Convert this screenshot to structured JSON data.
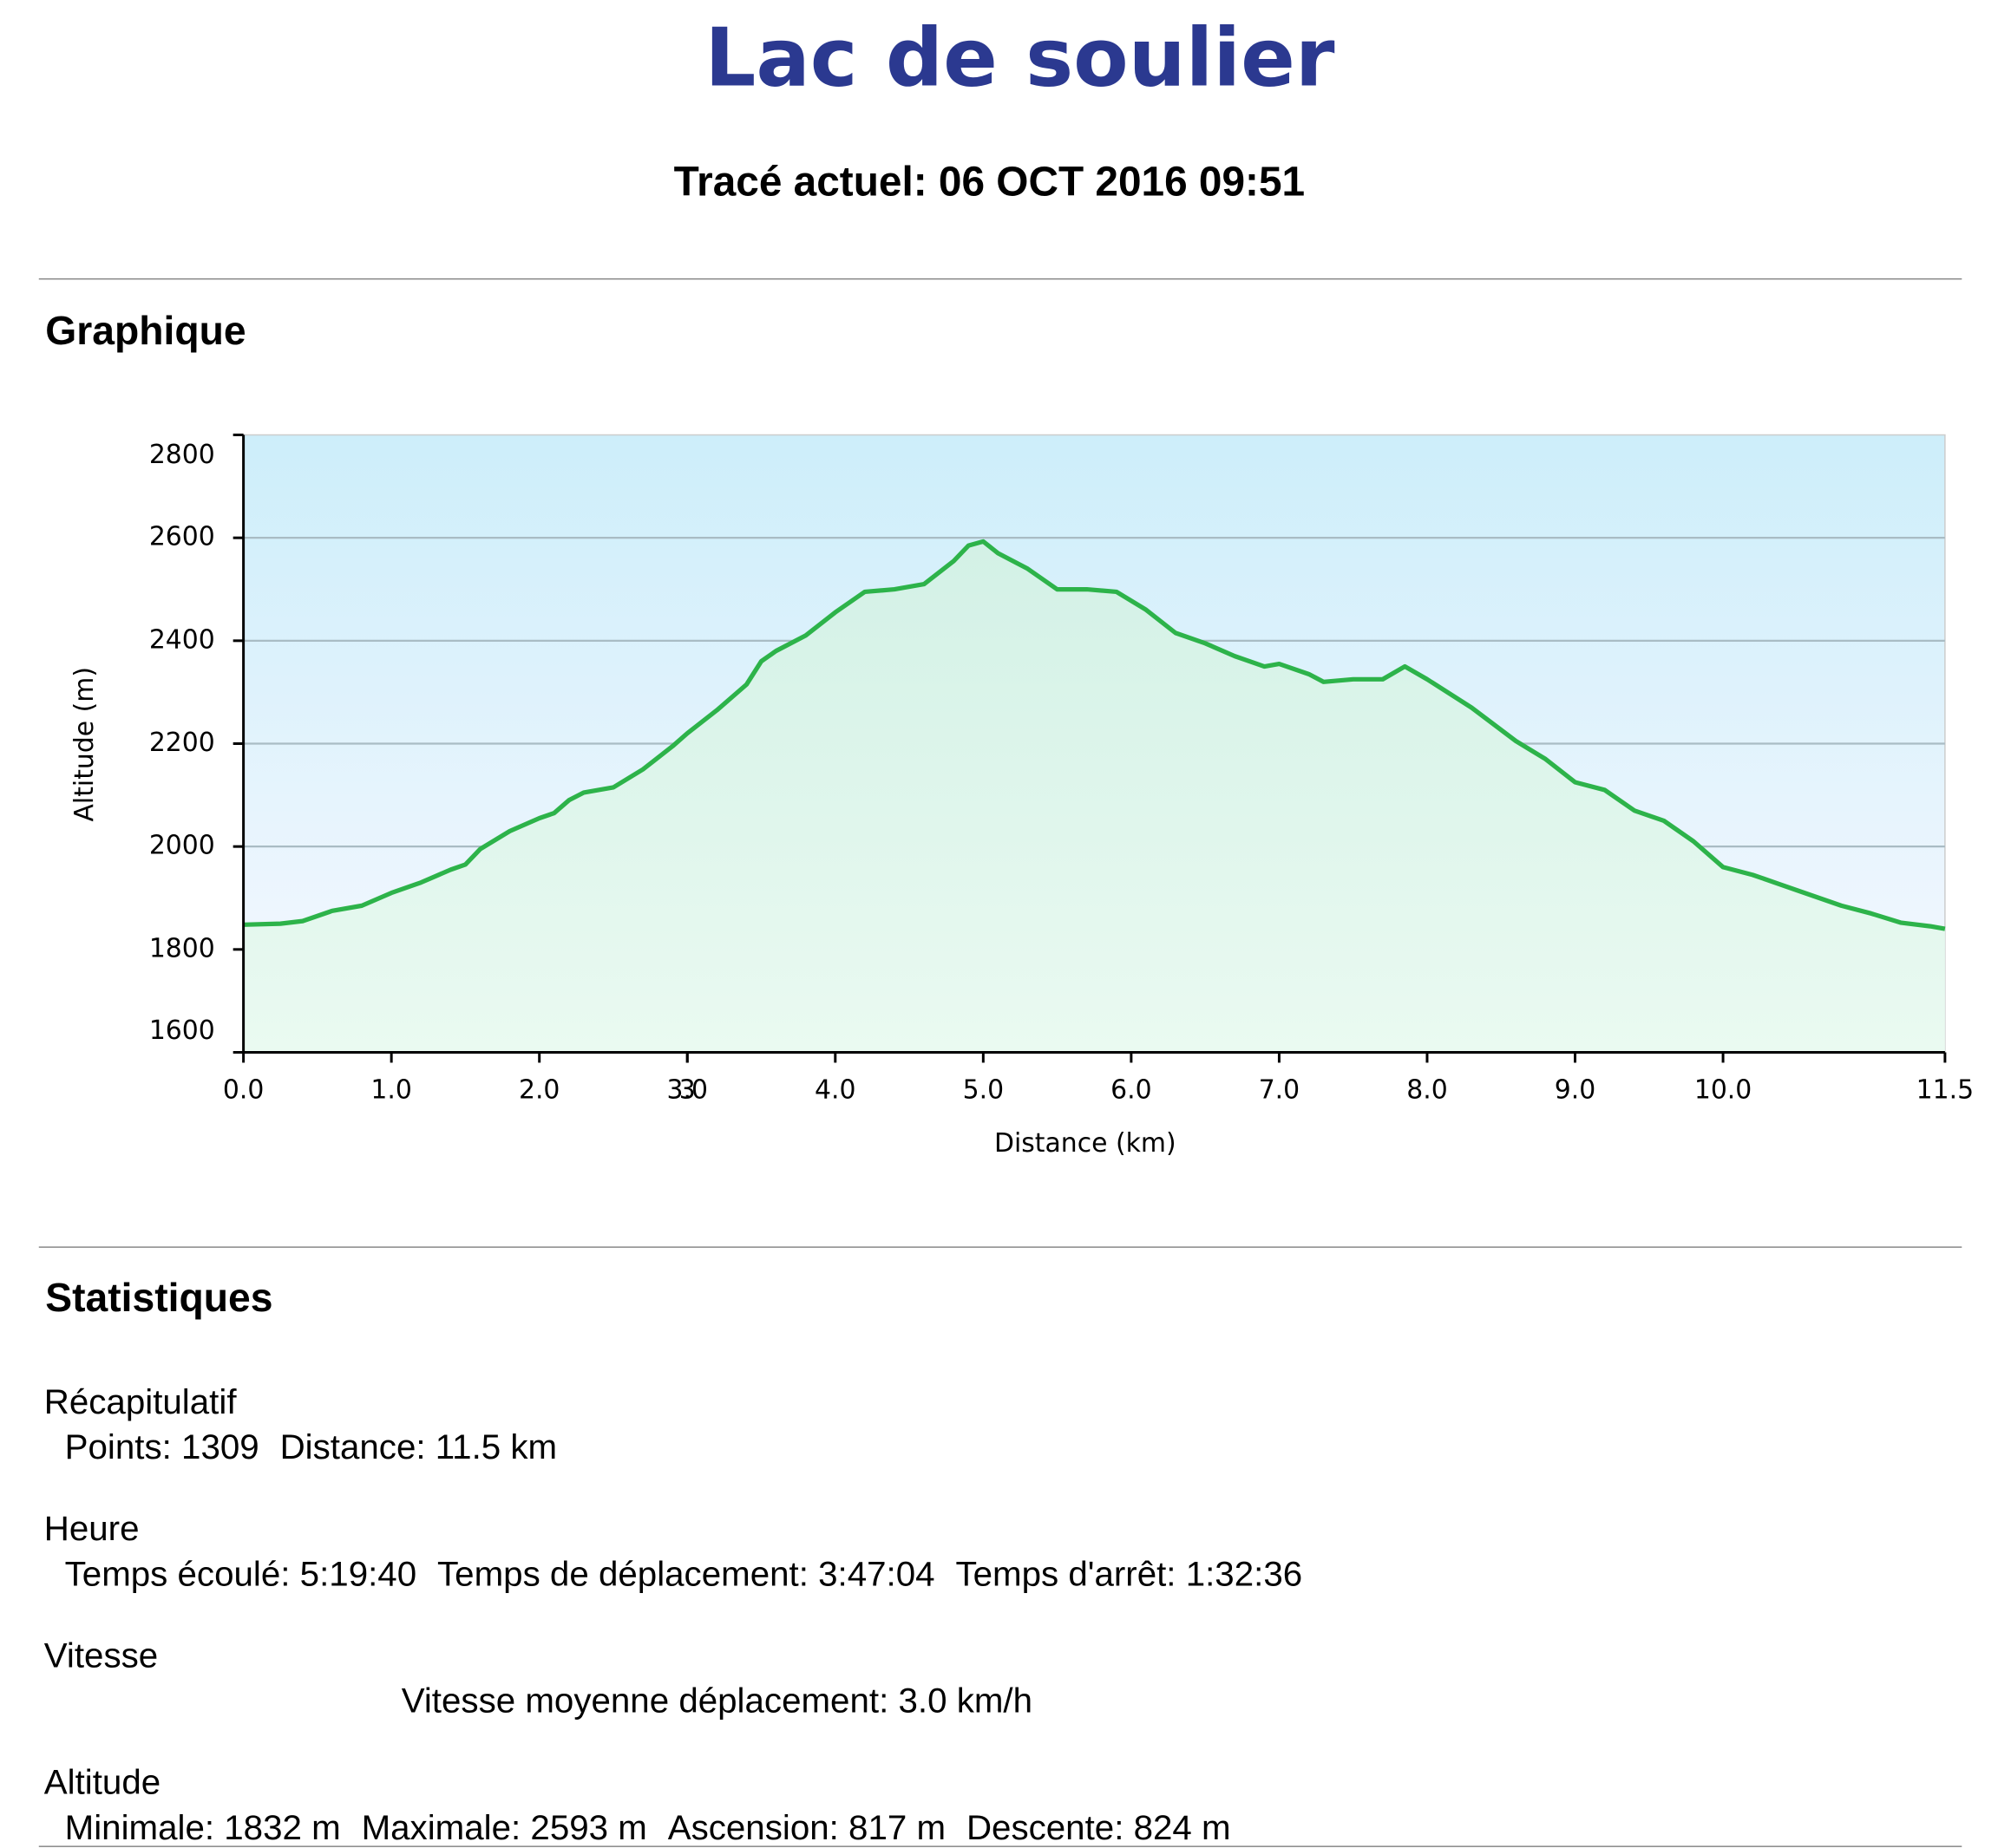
{
  "header": {
    "title": "Lac de soulier",
    "subtitle": "Tracé actuel: 06 OCT 2016 09:51"
  },
  "graph_heading": "Graphique",
  "chart_data": {
    "type": "area",
    "x_label": "Distance   (km)",
    "y_label": "Altitude (m)",
    "color": "#2db34a",
    "x": [
      0,
      0.25,
      0.4,
      0.6,
      0.8,
      1.0,
      1.2,
      1.4,
      1.5,
      1.6,
      1.8,
      2.0,
      2.1,
      2.2,
      2.3,
      2.5,
      2.7,
      2.9,
      3.0,
      3.2,
      3.4,
      3.5,
      3.6,
      3.8,
      4.0,
      4.2,
      4.4,
      4.6,
      4.8,
      4.9,
      5.0,
      5.1,
      5.3,
      5.5,
      5.7,
      5.9,
      6.1,
      6.3,
      6.5,
      6.7,
      6.9,
      7.0,
      7.2,
      7.3,
      7.5,
      7.7,
      7.85,
      8.0,
      8.3,
      8.6,
      8.8,
      9.0,
      9.2,
      9.4,
      9.6,
      9.8,
      10.0,
      10.2,
      10.5,
      10.8,
      11.0,
      11.2,
      11.4,
      11.5
    ],
    "values": [
      1848,
      1850,
      1855,
      1875,
      1885,
      1910,
      1930,
      1955,
      1965,
      1995,
      2030,
      2055,
      2065,
      2090,
      2105,
      2115,
      2150,
      2195,
      2220,
      2265,
      2315,
      2360,
      2380,
      2410,
      2455,
      2495,
      2500,
      2510,
      2555,
      2585,
      2593,
      2570,
      2540,
      2500,
      2500,
      2495,
      2460,
      2415,
      2395,
      2370,
      2350,
      2355,
      2335,
      2320,
      2325,
      2325,
      2350,
      2325,
      2270,
      2205,
      2170,
      2125,
      2110,
      2070,
      2050,
      2010,
      1960,
      1945,
      1915,
      1885,
      1870,
      1852,
      1845,
      1840
    ],
    "xlim": [
      0,
      11.5
    ],
    "ylim": [
      1600,
      2800
    ],
    "xticks": [
      {
        "value": 0,
        "label": "0.0"
      },
      {
        "value": 1,
        "label": "1.0"
      },
      {
        "value": 2,
        "label": "2.0"
      },
      3,
      {
        "value": 3,
        "label": "3.0"
      },
      {
        "value": 4,
        "label": "4.0"
      },
      {
        "value": 5,
        "label": "5.0"
      },
      {
        "value": 6,
        "label": "6.0"
      },
      {
        "value": 7,
        "label": "7.0"
      },
      {
        "value": 8,
        "label": "8.0"
      },
      {
        "value": 9,
        "label": "9.0"
      },
      {
        "value": 10,
        "label": "10.0"
      },
      11.5
    ],
    "yticks": [
      1600,
      1800,
      2000,
      2200,
      2400,
      2600,
      2800
    ],
    "grid": true
  },
  "statistics": {
    "heading": "Statistiques",
    "groups": [
      {
        "title": "Récapitulatif",
        "items": [
          "Points: 1309",
          "Distance: 11.5 km"
        ]
      },
      {
        "title": "Heure",
        "items": [
          "Temps écoulé: 5:19:40",
          "Temps de déplacement: 3:47:04",
          "Temps d'arrêt: 1:32:36"
        ]
      },
      {
        "title": "Vitesse",
        "items": [
          "Vitesse moyenne déplacement: 3.0 km/h"
        ]
      },
      {
        "title": "Altitude",
        "items": [
          "Minimale: 1832 m",
          "Maximale: 2593 m",
          "Ascension: 817 m",
          "Descente: 824 m"
        ]
      }
    ]
  }
}
